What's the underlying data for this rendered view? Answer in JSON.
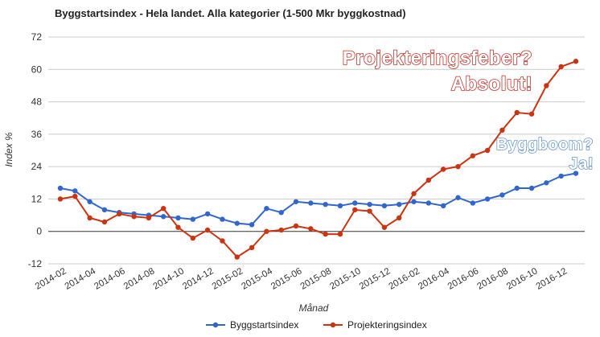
{
  "chart_data": {
    "type": "line",
    "title": "Byggstartsindex - Hela landet. Alla kategorier (1-500 Mkr byggkostnad)",
    "xlabel": "Månad",
    "ylabel": "Index %",
    "ylim": [
      -12,
      72
    ],
    "yticks": [
      "72",
      "60",
      "48",
      "36",
      "24",
      "12",
      "0",
      "-12"
    ],
    "grid": true,
    "legend_position": "bottom",
    "x": [
      "2014-02",
      "2014-03",
      "2014-04",
      "2014-05",
      "2014-06",
      "2014-07",
      "2014-08",
      "2014-09",
      "2014-10",
      "2014-11",
      "2014-12",
      "2015-01",
      "2015-02",
      "2015-03",
      "2015-04",
      "2015-05",
      "2015-06",
      "2015-07",
      "2015-08",
      "2015-09",
      "2015-10",
      "2015-11",
      "2015-12",
      "2016-01",
      "2016-02",
      "2016-03",
      "2016-04",
      "2016-05",
      "2016-06",
      "2016-07",
      "2016-08",
      "2016-09",
      "2016-10",
      "2016-11",
      "2016-12",
      "2017-01"
    ],
    "x_tick_labels": [
      "2014-02",
      "2014-04",
      "2014-06",
      "2014-08",
      "2014-10",
      "2014-12",
      "2015-02",
      "2015-04",
      "2015-06",
      "2015-08",
      "2015-10",
      "2015-12",
      "2016-02",
      "2016-04",
      "2016-06",
      "2016-08",
      "2016-10",
      "2016-12"
    ],
    "series": [
      {
        "name": "Byggstartsindex",
        "color": "#3366cc",
        "values": [
          16,
          15,
          11,
          8,
          7,
          6.5,
          6,
          5.5,
          5,
          4.5,
          6.5,
          4.5,
          3,
          2.5,
          8.5,
          7,
          11,
          10.5,
          10,
          9.5,
          10.5,
          10,
          9.5,
          10,
          11,
          10.5,
          9.5,
          12.5,
          10.5,
          12,
          13.5,
          16,
          16,
          18,
          20.5,
          21.5
        ]
      },
      {
        "name": "Projekteringsindex",
        "color": "#cc3311",
        "values": [
          12,
          13,
          5,
          3.5,
          6.5,
          5.5,
          5,
          8.5,
          1.5,
          -2.5,
          0.5,
          -3.5,
          -9.5,
          -6,
          0,
          0.5,
          2,
          1,
          -1,
          -1,
          8,
          7.5,
          1.5,
          5,
          14,
          19,
          23,
          24,
          28,
          30,
          37.5,
          44,
          43.5,
          54,
          61,
          63
        ]
      }
    ],
    "annotations": [
      {
        "text": "Projekteringsfeber?",
        "color": "#c0322a"
      },
      {
        "text": "Absolut!",
        "color": "#c0322a"
      },
      {
        "text": "Byggboom?",
        "color": "#6a9ac8"
      },
      {
        "text": "Ja!",
        "color": "#6a9ac8"
      }
    ]
  }
}
